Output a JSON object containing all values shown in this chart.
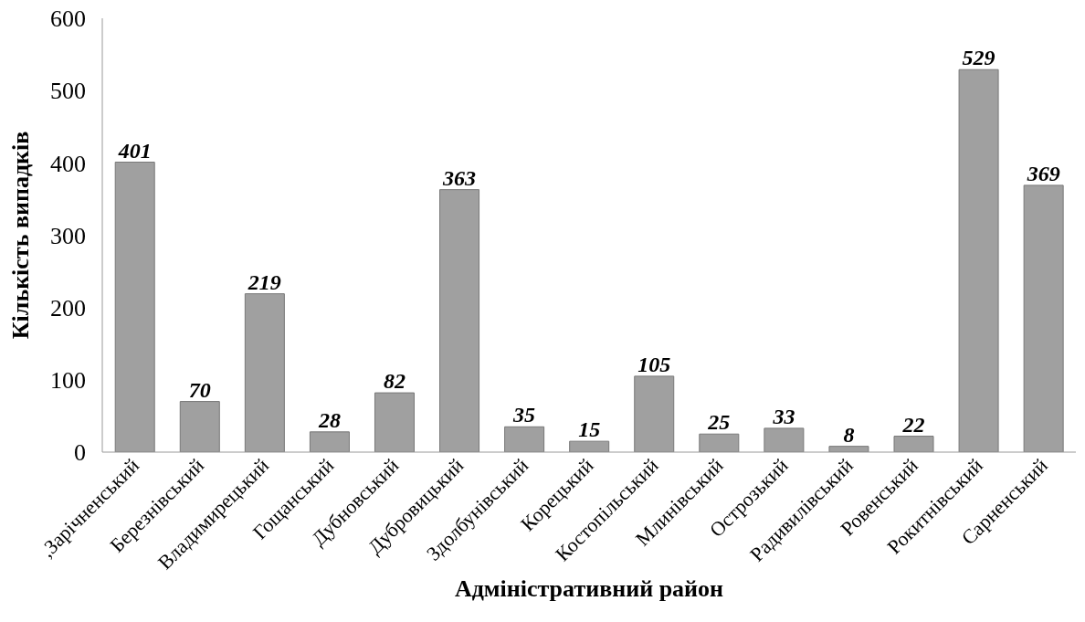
{
  "chart_data": {
    "type": "bar",
    "xlabel": "Адміністративний район",
    "ylabel": "Кількість випадків",
    "categories": [
      ",Зарічненський",
      "Березнівський",
      "Владимирецький",
      "Гощанський",
      "Дубновський",
      "Дубровицький",
      "Здолбунівський",
      "Корецький",
      "Костопільський",
      "Млинівський",
      "Острозький",
      "Радивилівський",
      "Ровенський",
      "Рокитнівський",
      "Сарненський"
    ],
    "values": [
      401,
      70,
      219,
      28,
      82,
      363,
      35,
      15,
      105,
      25,
      33,
      8,
      22,
      529,
      369
    ],
    "color": "#a0a0a0",
    "ylim": [
      0,
      600
    ],
    "yticks": [
      0,
      100,
      200,
      300,
      400,
      500,
      600
    ],
    "grid": false,
    "data_labels": true
  }
}
